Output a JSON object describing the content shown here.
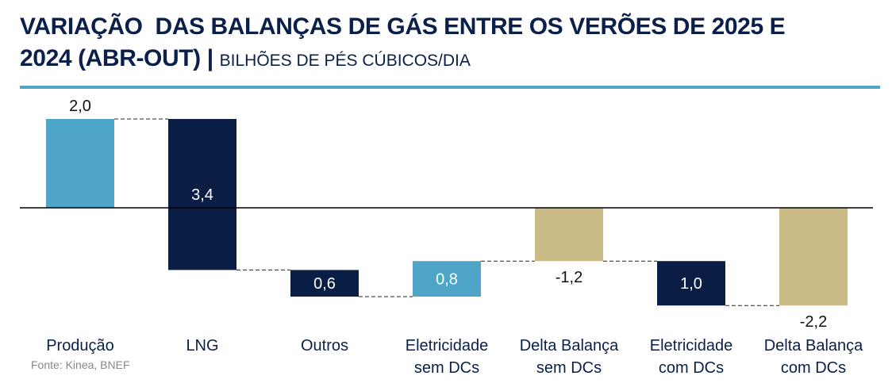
{
  "title_line1": "VARIAÇÃO  DAS BALANÇAS DE GÁS ENTRE OS VERÕES DE 2025 E",
  "title_line2": "2024 (ABR-OUT)",
  "separator": "|",
  "subtitle": "BILHÕES DE PÉS CÚBICOS/DIA",
  "source": "Fonte: Kinea, BNEF",
  "colors": {
    "light_blue": "#4ea5c8",
    "navy": "#0a1d45",
    "tan": "#cabb86",
    "rule": "#4ea5c8"
  },
  "chart_data": {
    "type": "waterfall",
    "unit": "bilhões de pés cúbicos/dia",
    "bars": [
      {
        "category": [
          "Produção"
        ],
        "start": 0,
        "end": 2.0,
        "label": "2,0",
        "color": "light_blue",
        "label_pos": "above"
      },
      {
        "category": [
          "LNG"
        ],
        "start": 2.0,
        "end": -1.4,
        "label": "3,4",
        "color": "navy",
        "label_pos": "inside"
      },
      {
        "category": [
          "Outros"
        ],
        "start": -1.4,
        "end": -2.0,
        "label": "0,6",
        "color": "navy",
        "label_pos": "inside"
      },
      {
        "category": [
          "Eletricidade",
          "sem DCs"
        ],
        "start": -2.0,
        "end": -1.2,
        "label": "0,8",
        "color": "light_blue",
        "label_pos": "inside"
      },
      {
        "category": [
          "Delta Balança",
          "sem DCs"
        ],
        "start": 0,
        "end": -1.2,
        "label": "-1,2",
        "color": "tan",
        "label_pos": "below"
      },
      {
        "category": [
          "Eletricidade",
          "com DCs"
        ],
        "start": -1.2,
        "end": -2.2,
        "label": "1,0",
        "color": "navy",
        "label_pos": "inside"
      },
      {
        "category": [
          "Delta Balança",
          "com DCs"
        ],
        "start": 0,
        "end": -2.2,
        "label": "-2,2",
        "color": "tan",
        "label_pos": "below"
      }
    ]
  }
}
